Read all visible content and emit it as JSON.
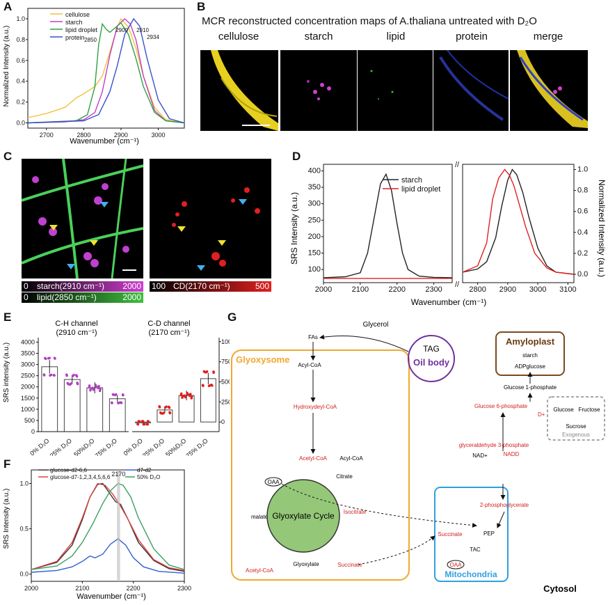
{
  "panels": {
    "A": "A",
    "B": "B",
    "C": "C",
    "D": "D",
    "E": "E",
    "F": "F",
    "G": "G"
  },
  "panelA": {
    "xlabel": "Wavenumber (cm⁻¹)",
    "ylabel": "Normalized Intensity (a.u.)",
    "legend": [
      "cellulose",
      "starch",
      "lipid droplet",
      "protein"
    ],
    "peak_labels": [
      "2850",
      "2900",
      "2910",
      "2934"
    ]
  },
  "panelB": {
    "title": "MCR reconstructed concentration maps of A.thaliana untreated with D₂O",
    "maps": [
      "cellulose",
      "starch",
      "lipid",
      "protein",
      "merge"
    ]
  },
  "panelC": {
    "cbar1_min": "0",
    "cbar1_label": "starch(2910 cm⁻¹)",
    "cbar1_max": "2000",
    "cbar2_min": "0",
    "cbar2_label": "lipid(2850 cm⁻¹)",
    "cbar2_max": "2000",
    "cbar3_min": "100",
    "cbar3_label": "CD(2170 cm⁻¹)",
    "cbar3_max": "500"
  },
  "panelD": {
    "xlabel": "Wavenumber (cm⁻¹)",
    "ylabel_left": "SRS Intensity (a.u.)",
    "ylabel_right": "Normalized Intensity (a.u.)",
    "legend": [
      "starch",
      "lipid droplet"
    ]
  },
  "panelE": {
    "ylabel": "SRS intensity (a.u.)",
    "ch1_title": "C-H channel",
    "ch1_sub": "(2910 cm⁻¹)",
    "ch2_title": "C-D channel",
    "ch2_sub": "(2170 cm⁻¹)",
    "categories": [
      "0% D₂O",
      "25% D₂O",
      "50%D₂O",
      "75% D₂O"
    ]
  },
  "panelF": {
    "xlabel": "Wavenumber (cm⁻¹)",
    "ylabel": "SRS Intensity (a.u.)",
    "legend": [
      "glucose-d2-6,6",
      "glucose-d7-1,2,3,4,5,6,6",
      "d7-d2",
      "50% D₂O"
    ],
    "marker": "2170"
  },
  "panelG": {
    "glyoxysome": "Glyoxysome",
    "oilbody": "Oil body",
    "tag": "TAG",
    "glycerol": "Glycerol",
    "amyloplast": "Amyloplast",
    "starch": "starch",
    "adpglucose": "ADPglucose",
    "g1p": "Glucose 1-phosphate",
    "g6p": "Glucose 6-phosphate",
    "glucose": "Glucose",
    "fructose": "Fructose",
    "sucrose": "Sucrose",
    "exogenous": "Exogenous",
    "g3p": "glyceraldehyde 3-phosphate",
    "nadp": "NAD+",
    "nadd": "NADD",
    "pg2": "2-phosphoglycerate",
    "pep": "PEP",
    "fas": "FAs",
    "acylcoa": "Acyl-CoA",
    "hydroxy": "Hydroxydeyl-CoA",
    "acetyl": "Acetyl-CoA",
    "acyl2": "Acyl-CoA",
    "citrate": "Citrate",
    "isocitrate": "Isocitrate",
    "oaa": "OAA",
    "malate": "malate",
    "glyoxylate": "Glyoxylate",
    "succinate": "Succinate",
    "acetyl2": "Acetyl-CoA",
    "cycle": "Glyoxylate Cycle",
    "mito": "Mitochondria",
    "tac": "TAC",
    "oaa2": "OAA",
    "succ2": "Succinate",
    "cytosol": "Cytosol",
    "dplus": "D+"
  },
  "chart_data": [
    {
      "type": "line",
      "panel": "A",
      "xlim": [
        2650,
        3070
      ],
      "ylim": [
        -0.05,
        1.1
      ],
      "xticks": [
        2700,
        2800,
        2900,
        3000
      ],
      "yticks": [
        0.0,
        0.2,
        0.4,
        0.6,
        0.8,
        1.0
      ],
      "series": [
        {
          "name": "cellulose",
          "color": "#f2c23a",
          "x": [
            2650,
            2700,
            2750,
            2780,
            2800,
            2830,
            2850,
            2870,
            2890,
            2900,
            2920,
            2940,
            2960,
            2990,
            3020,
            3070
          ],
          "y": [
            0.05,
            0.09,
            0.15,
            0.24,
            0.28,
            0.35,
            0.45,
            0.68,
            0.92,
            1.0,
            0.92,
            0.72,
            0.45,
            0.15,
            0.03,
            0.0
          ]
        },
        {
          "name": "starch",
          "color": "#c040c0",
          "x": [
            2650,
            2750,
            2800,
            2830,
            2850,
            2870,
            2890,
            2910,
            2925,
            2940,
            2960,
            2990,
            3020,
            3070
          ],
          "y": [
            0.0,
            0.01,
            0.03,
            0.1,
            0.3,
            0.65,
            0.93,
            1.0,
            0.95,
            0.8,
            0.45,
            0.12,
            0.02,
            0.0
          ]
        },
        {
          "name": "lipid droplet",
          "color": "#2ea043",
          "x": [
            2650,
            2780,
            2810,
            2830,
            2840,
            2850,
            2860,
            2870,
            2880,
            2900,
            2920,
            2940,
            2960,
            2990,
            3020,
            3070
          ],
          "y": [
            0.0,
            0.02,
            0.08,
            0.35,
            0.75,
            0.95,
            0.9,
            0.87,
            0.9,
            0.96,
            0.85,
            0.62,
            0.35,
            0.1,
            0.02,
            0.0
          ]
        },
        {
          "name": "protein",
          "color": "#3a50c8",
          "x": [
            2650,
            2800,
            2840,
            2870,
            2890,
            2910,
            2934,
            2950,
            2970,
            3000,
            3030,
            3070
          ],
          "y": [
            0.0,
            0.02,
            0.08,
            0.3,
            0.55,
            0.85,
            1.0,
            0.93,
            0.62,
            0.22,
            0.04,
            0.0
          ]
        }
      ]
    },
    {
      "type": "line",
      "panel": "D-left",
      "xlim": [
        2000,
        2350
      ],
      "ylim": [
        60,
        420
      ],
      "xticks": [
        2000,
        2100,
        2200,
        2300
      ],
      "yticks": [
        100,
        150,
        200,
        250,
        300,
        350,
        400
      ],
      "series": [
        {
          "name": "starch",
          "color": "#222222",
          "x": [
            2000,
            2060,
            2100,
            2120,
            2140,
            2155,
            2170,
            2185,
            2200,
            2215,
            2230,
            2260,
            2300,
            2350
          ],
          "y": [
            75,
            78,
            90,
            150,
            270,
            360,
            390,
            340,
            240,
            150,
            100,
            80,
            76,
            75
          ]
        },
        {
          "name": "lipid droplet",
          "color": "#e02020",
          "x": [
            2000,
            2350
          ],
          "y": [
            73,
            73
          ]
        }
      ]
    },
    {
      "type": "line",
      "panel": "D-right",
      "xlim": [
        2750,
        3120
      ],
      "ylim": [
        -0.08,
        1.05
      ],
      "xticks": [
        2800,
        2900,
        3000,
        3100
      ],
      "yticks": [
        0.0,
        0.2,
        0.4,
        0.6,
        0.8,
        1.0
      ],
      "series": [
        {
          "name": "starch",
          "color": "#222222",
          "x": [
            2750,
            2800,
            2830,
            2860,
            2880,
            2900,
            2915,
            2930,
            2950,
            2970,
            3000,
            3030,
            3060,
            3120
          ],
          "y": [
            0.02,
            0.05,
            0.12,
            0.35,
            0.65,
            0.9,
            1.0,
            0.95,
            0.78,
            0.55,
            0.25,
            0.08,
            0.02,
            0.0
          ]
        },
        {
          "name": "lipid droplet",
          "color": "#e02020",
          "x": [
            2750,
            2800,
            2830,
            2850,
            2870,
            2890,
            2905,
            2920,
            2940,
            2960,
            2990,
            3030,
            3060,
            3120
          ],
          "y": [
            0.02,
            0.08,
            0.3,
            0.72,
            0.92,
            1.0,
            0.95,
            0.85,
            0.65,
            0.45,
            0.2,
            0.06,
            0.02,
            0.0
          ]
        }
      ]
    },
    {
      "type": "bar",
      "panel": "E-CH",
      "ylim": [
        0,
        4200
      ],
      "yticks": [
        0,
        500,
        1000,
        1500,
        2000,
        2500,
        3000,
        3500,
        4000
      ],
      "categories": [
        "0% D₂O",
        "25% D₂O",
        "50%D₂O",
        "75% D₂O"
      ],
      "values": [
        2900,
        2330,
        1960,
        1470
      ],
      "errors": [
        300,
        200,
        250,
        150
      ],
      "color": "#b040c0"
    },
    {
      "type": "bar",
      "panel": "E-CD",
      "ylim": [
        -120,
        1050
      ],
      "yticks": [
        0,
        250,
        500,
        750,
        1000
      ],
      "categories": [
        "0% D₂O",
        "25% D₂O",
        "50%D₂O",
        "75% D₂O"
      ],
      "values": [
        -10,
        150,
        330,
        540
      ],
      "errors": [
        15,
        40,
        60,
        70
      ],
      "color": "#e02020"
    },
    {
      "type": "line",
      "panel": "F",
      "xlim": [
        2000,
        2300
      ],
      "ylim": [
        -0.08,
        1.15
      ],
      "xticks": [
        2000,
        2100,
        2200,
        2300
      ],
      "yticks": [
        0.0,
        0.5,
        1.0
      ],
      "series": [
        {
          "name": "glucose-d2-6,6",
          "color": "#333333",
          "x": [
            2000,
            2050,
            2080,
            2100,
            2115,
            2130,
            2140,
            2150,
            2165,
            2175,
            2190,
            2210,
            2240,
            2270,
            2300
          ],
          "y": [
            0.05,
            0.13,
            0.32,
            0.6,
            0.85,
            0.99,
            1.0,
            0.92,
            0.8,
            0.77,
            0.6,
            0.35,
            0.15,
            0.06,
            0.03
          ]
        },
        {
          "name": "glucose-d7-1,2,3,4,5,6,6",
          "color": "#e04040",
          "x": [
            2000,
            2050,
            2080,
            2100,
            2115,
            2130,
            2145,
            2160,
            2175,
            2190,
            2210,
            2240,
            2270,
            2300
          ],
          "y": [
            0.05,
            0.14,
            0.35,
            0.62,
            0.85,
            1.0,
            0.98,
            0.88,
            0.75,
            0.6,
            0.38,
            0.16,
            0.07,
            0.04
          ]
        },
        {
          "name": "d7-d2",
          "color": "#3060d0",
          "x": [
            2000,
            2050,
            2080,
            2100,
            2115,
            2125,
            2140,
            2155,
            2170,
            2185,
            2200,
            2220,
            2250,
            2300
          ],
          "y": [
            0.02,
            0.04,
            0.08,
            0.14,
            0.2,
            0.18,
            0.22,
            0.33,
            0.39,
            0.32,
            0.18,
            0.08,
            0.03,
            0.01
          ]
        },
        {
          "name": "50% D₂O",
          "color": "#3aa060",
          "x": [
            2000,
            2050,
            2080,
            2100,
            2120,
            2140,
            2155,
            2170,
            2180,
            2195,
            2210,
            2240,
            2270,
            2300
          ],
          "y": [
            0.05,
            0.09,
            0.2,
            0.35,
            0.55,
            0.78,
            0.92,
            1.0,
            0.98,
            0.85,
            0.62,
            0.28,
            0.1,
            0.05
          ]
        }
      ]
    }
  ]
}
